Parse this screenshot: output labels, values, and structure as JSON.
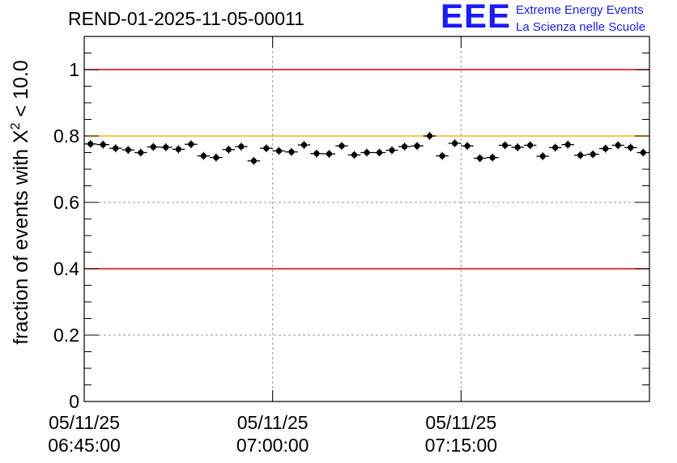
{
  "header": {
    "title": "REND-01-2025-11-05-00011",
    "logo_mark": "EEE",
    "logo_line1": "Extreme Energy Events",
    "logo_line2": "La Scienza nelle Scuole"
  },
  "colors": {
    "red_limit": "#e00000",
    "orange_limit": "#ffb300",
    "marker": "#000000",
    "logo": "#1a1aff"
  },
  "chart_data": {
    "type": "scatter",
    "title": "REND-01-2025-11-05-00011",
    "xlabel": "",
    "ylabel_prefix": "fraction of events with ",
    "ylabel_symbol": "X",
    "ylabel_sup": "2",
    "ylabel_suffix": " < 10.0",
    "x_unit": "minutes after 06:45:00",
    "xlim": [
      0,
      45
    ],
    "ylim": [
      0,
      1.1
    ],
    "yticks": [
      {
        "value": 0,
        "label": "0"
      },
      {
        "value": 0.2,
        "label": "0.2"
      },
      {
        "value": 0.4,
        "label": "0.4"
      },
      {
        "value": 0.6,
        "label": "0.6"
      },
      {
        "value": 0.8,
        "label": "0.8"
      },
      {
        "value": 1.0,
        "label": "1"
      }
    ],
    "xticks": [
      {
        "value": 0,
        "date": "05/11/25",
        "time": "06:45:00"
      },
      {
        "value": 15,
        "date": "05/11/25",
        "time": "07:00:00"
      },
      {
        "value": 30,
        "date": "05/11/25",
        "time": "07:15:00"
      }
    ],
    "hlines": [
      {
        "value": 1.0,
        "color": "#e00000"
      },
      {
        "value": 0.8,
        "color": "#ffb300"
      },
      {
        "value": 0.4,
        "color": "#e00000"
      }
    ],
    "grid": true,
    "x_half_width": 0.5,
    "y_error": 0.012,
    "x": [
      0.5,
      1.5,
      2.5,
      3.5,
      4.5,
      5.5,
      6.5,
      7.5,
      8.5,
      9.5,
      10.5,
      11.5,
      12.5,
      13.5,
      14.5,
      15.5,
      16.5,
      17.5,
      18.5,
      19.5,
      20.5,
      21.5,
      22.5,
      23.5,
      24.5,
      25.5,
      26.5,
      27.5,
      28.5,
      29.5,
      30.5,
      31.5,
      32.5,
      33.5,
      34.5,
      35.5,
      36.5,
      37.5,
      38.5,
      39.5,
      40.5,
      41.5,
      42.5,
      43.5,
      44.5
    ],
    "y": [
      0.776,
      0.774,
      0.763,
      0.758,
      0.75,
      0.767,
      0.766,
      0.76,
      0.775,
      0.74,
      0.735,
      0.759,
      0.768,
      0.725,
      0.763,
      0.755,
      0.752,
      0.773,
      0.747,
      0.746,
      0.77,
      0.743,
      0.75,
      0.75,
      0.757,
      0.768,
      0.77,
      0.8,
      0.74,
      0.778,
      0.77,
      0.733,
      0.735,
      0.772,
      0.766,
      0.772,
      0.739,
      0.765,
      0.774,
      0.742,
      0.745,
      0.762,
      0.772,
      0.765,
      0.75
    ]
  }
}
